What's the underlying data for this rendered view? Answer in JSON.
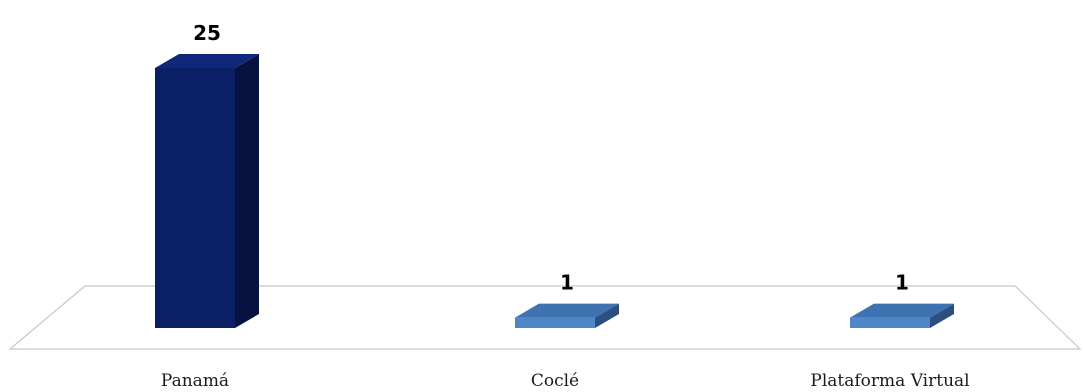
{
  "chart_data": {
    "type": "bar",
    "categories": [
      "Panamá",
      "Coclé",
      "Plataforma Virtual"
    ],
    "values": [
      25,
      1,
      1
    ],
    "data_labels": [
      "25",
      "1",
      "1"
    ],
    "title": "",
    "xlabel": "",
    "ylabel": "",
    "ylim": [
      0,
      25
    ],
    "grid": false,
    "legend": "none",
    "bar_colors": [
      "#0b1f66",
      "#4f86c6",
      "#4f86c6"
    ],
    "bar_side_colors": [
      "#06123f",
      "#2b4f80",
      "#2b4f80"
    ],
    "bar_top_colors": [
      "#10287a",
      "#3e72b0",
      "#3e72b0"
    ],
    "floor_stroke": "#c8c8c8"
  }
}
